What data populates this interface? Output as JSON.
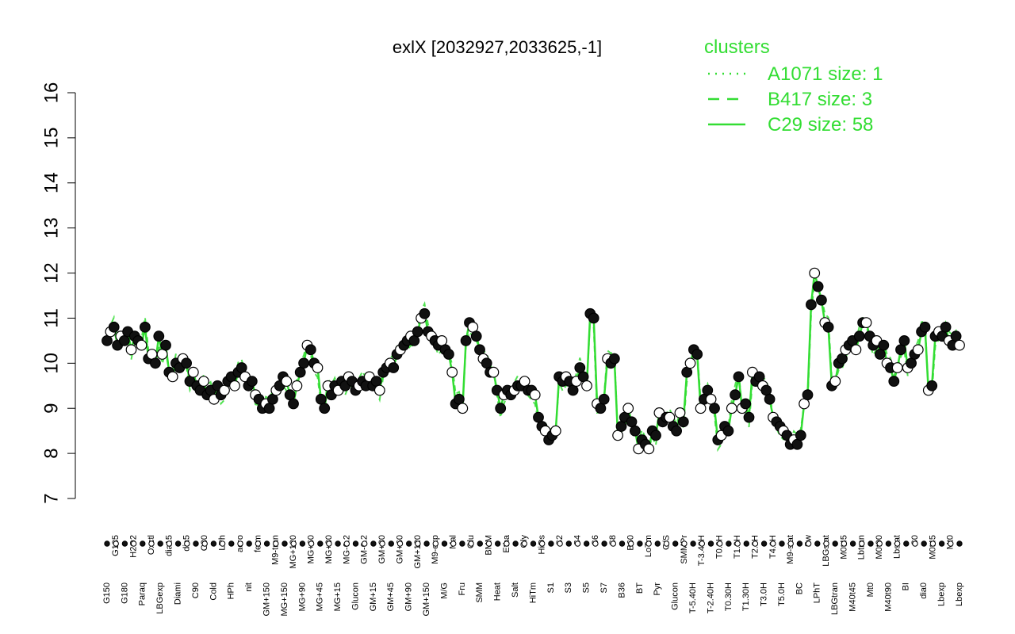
{
  "chart_data": {
    "type": "line",
    "title": "exlX [2032927,2033625,-1]",
    "xlabel": "",
    "ylabel": "",
    "ylim": [
      7,
      16
    ],
    "yticks": [
      7,
      8,
      9,
      10,
      11,
      12,
      13,
      14,
      15,
      16
    ],
    "grid": false,
    "legend": {
      "title": "clusters",
      "placement": "top-right",
      "entries": [
        {
          "label": "A1071 size: 1",
          "style": "dotted"
        },
        {
          "label": "B417 size: 3",
          "style": "dashed"
        },
        {
          "label": "C29 size: 58",
          "style": "solid"
        }
      ]
    },
    "colors": {
      "series": "#33dd33",
      "legend": "#33dd33",
      "axis": "#000000"
    },
    "tick_labels": [
      "G150",
      "G135",
      "G180",
      "H2O2",
      "Paraq",
      "Oxctl",
      "LBGexp",
      "dia15",
      "Diami",
      "dia5",
      "C90",
      "C30",
      "Cold",
      "LPh",
      "HPh",
      "aero",
      "nit",
      "ferm",
      "GM+150",
      "M9-tran",
      "MG+150",
      "MG+120",
      "MG+90",
      "MG+60",
      "MG+45",
      "MG+30",
      "MG+15",
      "MG-0.2",
      "Glucon",
      "GM-0.2",
      "GM+15",
      "GM+30",
      "GM+45",
      "GM+60",
      "GM+90",
      "GM+120",
      "GM+150",
      "M9-exp",
      "M/G",
      "Mal",
      "Fru",
      "Glu",
      "SMM",
      "BMM",
      "Heat",
      "Etha",
      "Salt",
      "Gly",
      "HiTm",
      "HiOs",
      "S1",
      "S2",
      "S3",
      "S4",
      "S5",
      "S6",
      "S7",
      "S8",
      "B36",
      "B60",
      "BT",
      "LoTm",
      "Pyr",
      "G/S",
      "Glucon",
      "SMMPr",
      "T-5.40H",
      "T-3.40H",
      "T-2.40H",
      "T0.0H",
      "T0.30H",
      "T1.0H",
      "T1.30H",
      "T2.0H",
      "T3.0H",
      "T4.0H",
      "T5.0H",
      "M9-stat",
      "BC",
      "Sw",
      "LPhT",
      "LBGstat",
      "LBGtran",
      "M0t45",
      "M40t45",
      "Lbtran",
      "Mt0",
      "M0t90",
      "M40t90",
      "Lbstat",
      "BI",
      "S0",
      "dia0",
      "M0t45",
      "Lbexp",
      "Mt0",
      "Lbexp"
    ],
    "series": [
      {
        "values": [
          10.5,
          10.7,
          10.8,
          10.4,
          10.6,
          10.5,
          10.7,
          10.3,
          10.6,
          10.5,
          10.4,
          10.8,
          10.1,
          10.2,
          10.0,
          10.6,
          10.2,
          10.4,
          9.8,
          9.7,
          10.0,
          9.9,
          10.1,
          10.0,
          9.6,
          9.8,
          9.5,
          9.4,
          9.6,
          9.3,
          9.4,
          9.2,
          9.5,
          9.3,
          9.4,
          9.6,
          9.7,
          9.5,
          9.8,
          9.9,
          9.7,
          9.5,
          9.6,
          9.3,
          9.2,
          9.0,
          9.1,
          9.0,
          9.2,
          9.4,
          9.5,
          9.7,
          9.6,
          9.3,
          9.1,
          9.5,
          9.8,
          10.0,
          10.4,
          10.3,
          10.0,
          9.9,
          9.2,
          9.0,
          9.5,
          9.3,
          9.5,
          9.4,
          9.6,
          9.5,
          9.7,
          9.6,
          9.4,
          9.5,
          9.6,
          9.5,
          9.7,
          9.5,
          9.6,
          9.4,
          9.8,
          9.9,
          10.0,
          9.9,
          10.2,
          10.3,
          10.4,
          10.5,
          10.6,
          10.5,
          10.7,
          11.0,
          11.1,
          10.7,
          10.6,
          10.5,
          10.4,
          10.5,
          10.3,
          10.2,
          9.8,
          9.1,
          9.2,
          9.0,
          10.5,
          10.9,
          10.8,
          10.6,
          10.3,
          10.1,
          10.0,
          9.8,
          9.8,
          9.4,
          9.0,
          9.3,
          9.4,
          9.3,
          9.4,
          9.5,
          9.5,
          9.6,
          9.4,
          9.4,
          9.3,
          8.8,
          8.6,
          8.5,
          8.3,
          8.4,
          8.5,
          9.7,
          9.6,
          9.7,
          9.6,
          9.4,
          9.6,
          9.9,
          9.7,
          9.5,
          11.1,
          11.0,
          9.1,
          9.0,
          9.2,
          10.1,
          10.0,
          10.1,
          8.4,
          8.6,
          8.8,
          9.0,
          8.7,
          8.5,
          8.1,
          8.3,
          8.2,
          8.1,
          8.5,
          8.4,
          8.9,
          8.7,
          8.8,
          8.8,
          8.6,
          8.5,
          8.9,
          8.7,
          9.8,
          10.0,
          10.3,
          10.2,
          9.0,
          9.2,
          9.4,
          9.2,
          9.0,
          8.3,
          8.4,
          8.6,
          8.5,
          9.0,
          9.3,
          9.7,
          9.0,
          9.1,
          8.8,
          9.8,
          9.6,
          9.7,
          9.5,
          9.4,
          9.2,
          8.8,
          8.7,
          8.6,
          8.5,
          8.4,
          8.2,
          8.3,
          8.2,
          8.4,
          9.1,
          9.3,
          11.3,
          12.0,
          11.7,
          11.4,
          10.9,
          10.8,
          9.5,
          9.6,
          10.0,
          10.1,
          10.3,
          10.4,
          10.5,
          10.3,
          10.6,
          10.9,
          10.9,
          10.6,
          10.4,
          10.5,
          10.2,
          10.4,
          10.0,
          9.9,
          9.6,
          9.9,
          10.3,
          10.5,
          9.9,
          10.0,
          10.2,
          10.3,
          10.7,
          10.8,
          9.4,
          9.5,
          10.6,
          10.7,
          10.6,
          10.8,
          10.5,
          10.4,
          10.6,
          10.4
        ]
      }
    ]
  }
}
